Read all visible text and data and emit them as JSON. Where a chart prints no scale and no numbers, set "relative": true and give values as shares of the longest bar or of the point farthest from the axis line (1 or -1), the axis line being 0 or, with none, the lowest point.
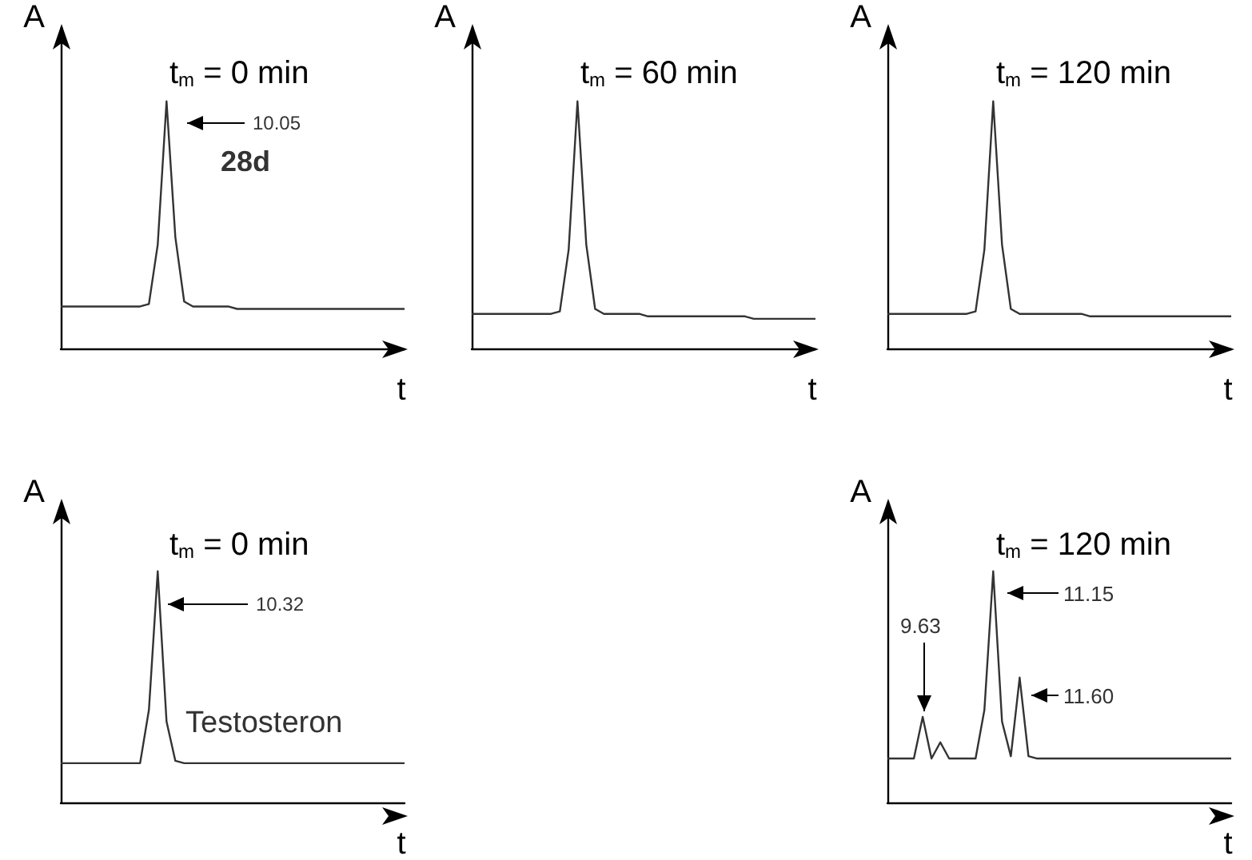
{
  "chart_data": [
    {
      "type": "line",
      "title": "t$_{m}$ = 0 min",
      "xlabel": "t",
      "ylabel": "A",
      "relative": true,
      "annotations": [
        "10.05",
        "28d"
      ],
      "categories": [
        null,
        null,
        null,
        null,
        null,
        null,
        null,
        null,
        null,
        null,
        null,
        null,
        null,
        null,
        null,
        null,
        null,
        null,
        null,
        null,
        null,
        null,
        null,
        null,
        null,
        null,
        null,
        null,
        null,
        null,
        null,
        null,
        null,
        null,
        null,
        null,
        null,
        null,
        null,
        null
      ],
      "series": [
        {
          "color": "#333333",
          "values": [
            0.17,
            0.17,
            0.17,
            0.17,
            0.17,
            0.17,
            0.17,
            0.17,
            0.17,
            0.17,
            0.18,
            0.42,
            1,
            0.45,
            0.19,
            0.17,
            0.17,
            0.17,
            0.17,
            0.17,
            0.16,
            0.16,
            0.16,
            0.16,
            0.16,
            0.16,
            0.16,
            0.16,
            0.16,
            0.16,
            0.16,
            0.16,
            0.16,
            0.16,
            0.16,
            0.16,
            0.16,
            0.16,
            0.16,
            0.16
          ]
        }
      ]
    },
    {
      "type": "line",
      "title": "t$_{m}$ = 60 min",
      "xlabel": "t",
      "ylabel": "A",
      "relative": true,
      "categories": [
        null,
        null,
        null,
        null,
        null,
        null,
        null,
        null,
        null,
        null,
        null,
        null,
        null,
        null,
        null,
        null,
        null,
        null,
        null,
        null,
        null,
        null,
        null,
        null,
        null,
        null,
        null,
        null,
        null,
        null,
        null,
        null,
        null,
        null,
        null,
        null,
        null,
        null,
        null,
        null
      ],
      "series": [
        {
          "color": "#333333",
          "values": [
            0.14,
            0.14,
            0.14,
            0.14,
            0.14,
            0.14,
            0.14,
            0.14,
            0.14,
            0.14,
            0.15,
            0.4,
            1,
            0.42,
            0.16,
            0.14,
            0.14,
            0.14,
            0.14,
            0.14,
            0.13,
            0.13,
            0.13,
            0.13,
            0.13,
            0.13,
            0.13,
            0.13,
            0.13,
            0.13,
            0.13,
            0.13,
            0.12,
            0.12,
            0.12,
            0.12,
            0.12,
            0.12,
            0.12,
            0.12
          ]
        }
      ]
    },
    {
      "type": "line",
      "title": "t$_{m}$ = 120 min",
      "xlabel": "t",
      "ylabel": "A",
      "relative": true,
      "categories": [
        null,
        null,
        null,
        null,
        null,
        null,
        null,
        null,
        null,
        null,
        null,
        null,
        null,
        null,
        null,
        null,
        null,
        null,
        null,
        null,
        null,
        null,
        null,
        null,
        null,
        null,
        null,
        null,
        null,
        null,
        null,
        null,
        null,
        null,
        null,
        null,
        null,
        null,
        null,
        null
      ],
      "series": [
        {
          "color": "#333333",
          "values": [
            0.14,
            0.14,
            0.14,
            0.14,
            0.14,
            0.14,
            0.14,
            0.14,
            0.14,
            0.14,
            0.15,
            0.4,
            1,
            0.42,
            0.16,
            0.14,
            0.14,
            0.14,
            0.14,
            0.14,
            0.14,
            0.14,
            0.14,
            0.13,
            0.13,
            0.13,
            0.13,
            0.13,
            0.13,
            0.13,
            0.13,
            0.13,
            0.13,
            0.13,
            0.13,
            0.13,
            0.13,
            0.13,
            0.13,
            0.13
          ]
        }
      ]
    },
    {
      "type": "line",
      "title": "t$_{m}$ = 0 min",
      "xlabel": "t",
      "ylabel": "A",
      "relative": true,
      "annotations": [
        "10.32",
        "Testosteron"
      ],
      "categories": [
        null,
        null,
        null,
        null,
        null,
        null,
        null,
        null,
        null,
        null,
        null,
        null,
        null,
        null,
        null,
        null,
        null,
        null,
        null,
        null,
        null,
        null,
        null,
        null,
        null,
        null,
        null,
        null,
        null,
        null,
        null,
        null,
        null,
        null,
        null,
        null,
        null,
        null,
        null,
        null
      ],
      "series": [
        {
          "color": "#333333",
          "values": [
            0.17,
            0.17,
            0.17,
            0.17,
            0.17,
            0.17,
            0.17,
            0.17,
            0.17,
            0.17,
            0.4,
            1,
            0.35,
            0.18,
            0.17,
            0.17,
            0.17,
            0.17,
            0.17,
            0.17,
            0.17,
            0.17,
            0.17,
            0.17,
            0.17,
            0.17,
            0.17,
            0.17,
            0.17,
            0.17,
            0.17,
            0.17,
            0.17,
            0.17,
            0.17,
            0.17,
            0.17,
            0.17,
            0.17,
            0.17
          ]
        }
      ]
    },
    {
      "type": "line",
      "title": "t$_{m}$ = 120 min",
      "xlabel": "t",
      "ylabel": "A",
      "relative": true,
      "annotations": [
        "9.63",
        "11.15",
        "11.60"
      ],
      "categories": [
        null,
        null,
        null,
        null,
        null,
        null,
        null,
        null,
        null,
        null,
        null,
        null,
        null,
        null,
        null,
        null,
        null,
        null,
        null,
        null,
        null,
        null,
        null,
        null,
        null,
        null,
        null,
        null,
        null,
        null,
        null,
        null,
        null,
        null,
        null,
        null,
        null,
        null,
        null,
        null
      ],
      "series": [
        {
          "color": "#333333",
          "values": [
            0.19,
            0.19,
            0.19,
            0.19,
            0.37,
            0.19,
            0.26,
            0.19,
            0.19,
            0.19,
            0.19,
            0.4,
            1,
            0.35,
            0.2,
            0.54,
            0.2,
            0.19,
            0.19,
            0.19,
            0.19,
            0.19,
            0.19,
            0.19,
            0.19,
            0.19,
            0.19,
            0.19,
            0.19,
            0.19,
            0.19,
            0.19,
            0.19,
            0.19,
            0.19,
            0.19,
            0.19,
            0.19,
            0.19,
            0.19
          ]
        }
      ]
    }
  ]
}
